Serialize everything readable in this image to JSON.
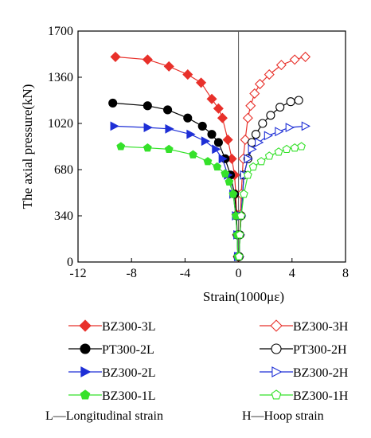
{
  "chart_data": {
    "type": "line",
    "xlabel": "Strain(1000με)",
    "ylabel": "The axial pressure(kN)",
    "xlim": [
      -12,
      8
    ],
    "ylim": [
      0,
      1700
    ],
    "xticks": [
      "-12",
      "-8",
      "-4",
      "0",
      "4",
      "8"
    ],
    "yticks": [
      "0",
      "340",
      "680",
      "1020",
      "1360",
      "1700"
    ],
    "legend_position": "bottom",
    "series": [
      {
        "name": "BZ300-3L",
        "color": "#e8302a",
        "marker": "diamond",
        "fill": "filled",
        "x": [
          -0.05,
          -0.1,
          -0.15,
          -0.2,
          -0.3,
          -0.5,
          -0.8,
          -1.2,
          -1.5,
          -2.0,
          -2.8,
          -3.8,
          -5.2,
          -6.8,
          -9.2
        ],
        "y": [
          40,
          200,
          350,
          500,
          640,
          760,
          900,
          1060,
          1130,
          1200,
          1320,
          1380,
          1440,
          1490,
          1510
        ]
      },
      {
        "name": "BZ300-3H",
        "color": "#e8302a",
        "marker": "diamond",
        "fill": "open",
        "x": [
          0.05,
          0.1,
          0.15,
          0.2,
          0.35,
          0.5,
          0.7,
          0.9,
          1.2,
          1.6,
          2.3,
          3.2,
          4.2,
          5.0
        ],
        "y": [
          40,
          200,
          350,
          500,
          760,
          900,
          1060,
          1150,
          1240,
          1310,
          1380,
          1450,
          1490,
          1510
        ]
      },
      {
        "name": "PT300-2L",
        "color": "#000000",
        "marker": "circle",
        "fill": "filled",
        "x": [
          -0.05,
          -0.1,
          -0.15,
          -0.3,
          -0.6,
          -1.0,
          -1.5,
          -2.0,
          -2.7,
          -3.8,
          -5.3,
          -6.8,
          -9.4
        ],
        "y": [
          40,
          200,
          340,
          500,
          640,
          760,
          880,
          940,
          1000,
          1060,
          1120,
          1150,
          1170
        ]
      },
      {
        "name": "PT300-2H",
        "color": "#000000",
        "marker": "circle",
        "fill": "open",
        "x": [
          0.05,
          0.1,
          0.2,
          0.4,
          0.7,
          1.0,
          1.3,
          1.8,
          2.4,
          3.1,
          3.9,
          4.5
        ],
        "y": [
          40,
          200,
          340,
          640,
          760,
          880,
          940,
          1020,
          1080,
          1140,
          1180,
          1190
        ]
      },
      {
        "name": "BZ300-2L",
        "color": "#1e2fd6",
        "marker": "triangle-right",
        "fill": "filled",
        "x": [
          -0.05,
          -0.1,
          -0.2,
          -0.4,
          -0.8,
          -1.2,
          -1.7,
          -2.5,
          -3.6,
          -5.2,
          -6.8,
          -9.3
        ],
        "y": [
          40,
          200,
          340,
          500,
          640,
          760,
          830,
          890,
          940,
          980,
          990,
          1000
        ]
      },
      {
        "name": "BZ300-2H",
        "color": "#1e2fd6",
        "marker": "triangle-right",
        "fill": "open",
        "x": [
          0.05,
          0.1,
          0.2,
          0.4,
          0.7,
          1.0,
          1.5,
          2.2,
          3.0,
          3.8,
          5.0
        ],
        "y": [
          40,
          200,
          340,
          640,
          760,
          830,
          880,
          930,
          960,
          990,
          1000
        ]
      },
      {
        "name": "BZ300-1L",
        "color": "#35e12a",
        "marker": "pentagon",
        "fill": "filled",
        "x": [
          -0.05,
          -0.1,
          -0.2,
          -0.4,
          -0.7,
          -1.0,
          -1.6,
          -2.3,
          -3.4,
          -5.2,
          -6.8,
          -8.8
        ],
        "y": [
          40,
          200,
          340,
          500,
          590,
          650,
          700,
          740,
          790,
          830,
          840,
          850
        ]
      },
      {
        "name": "BZ300-1H",
        "color": "#35e12a",
        "marker": "pentagon",
        "fill": "open",
        "x": [
          0.05,
          0.1,
          0.2,
          0.4,
          0.7,
          1.1,
          1.7,
          2.3,
          3.0,
          3.6,
          4.2,
          4.7
        ],
        "y": [
          40,
          200,
          340,
          500,
          640,
          700,
          740,
          780,
          810,
          830,
          840,
          850
        ]
      }
    ],
    "legend_note_left": "L—Longitudinal strain",
    "legend_note_right": "H—Hoop strain"
  }
}
